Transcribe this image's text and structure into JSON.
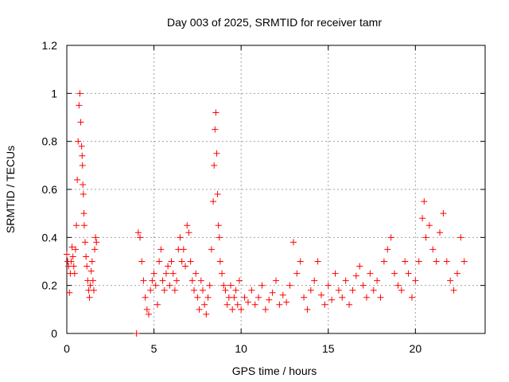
{
  "chart_data": {
    "type": "scatter",
    "title": "Day 003 of 2025, SRMTID for receiver tamr",
    "xlabel": "GPS time / hours",
    "ylabel": "SRMTID / TECUs",
    "xlim": [
      0,
      24
    ],
    "ylim": [
      0,
      1.2
    ],
    "grid": true,
    "marker": "+",
    "color": "#ff0000",
    "xticks": [
      0,
      5,
      10,
      15,
      20
    ],
    "xtick_labels": [
      "0",
      "5",
      "10",
      "15",
      "20"
    ],
    "yticks": [
      0,
      0.2,
      0.4,
      0.6,
      0.8,
      1.0,
      1.2
    ],
    "ytick_labels": [
      "0",
      "0.2",
      "0.4",
      "0.6",
      "0.8",
      "1",
      "1.2"
    ],
    "series": [
      {
        "name": "tamr",
        "x": [
          0.0,
          0.05,
          0.1,
          0.15,
          0.2,
          0.25,
          0.3,
          0.35,
          0.4,
          0.45,
          0.5,
          0.55,
          0.6,
          0.65,
          0.7,
          0.75,
          0.8,
          0.85,
          0.88,
          0.9,
          0.92,
          0.95,
          0.98,
          1.0,
          1.05,
          1.1,
          1.15,
          1.2,
          1.25,
          1.3,
          1.35,
          1.4,
          1.45,
          1.5,
          1.55,
          1.6,
          1.65,
          1.7,
          4.0,
          4.1,
          4.2,
          4.3,
          4.4,
          4.5,
          4.6,
          4.7,
          4.8,
          4.9,
          5.0,
          5.1,
          5.2,
          5.3,
          5.4,
          5.5,
          5.6,
          5.7,
          5.8,
          5.9,
          6.0,
          6.1,
          6.2,
          6.3,
          6.4,
          6.5,
          6.6,
          6.7,
          6.8,
          6.9,
          7.0,
          7.1,
          7.2,
          7.3,
          7.4,
          7.5,
          7.6,
          7.7,
          7.8,
          7.9,
          8.0,
          8.1,
          8.2,
          8.3,
          8.4,
          8.45,
          8.5,
          8.55,
          8.6,
          8.65,
          8.7,
          8.75,
          8.8,
          8.9,
          9.0,
          9.1,
          9.2,
          9.3,
          9.4,
          9.5,
          9.6,
          9.7,
          9.8,
          9.9,
          10.0,
          10.2,
          10.4,
          10.6,
          10.8,
          11.0,
          11.2,
          11.4,
          11.6,
          11.8,
          12.0,
          12.2,
          12.4,
          12.6,
          12.8,
          13.0,
          13.2,
          13.4,
          13.6,
          13.8,
          14.0,
          14.2,
          14.4,
          14.6,
          14.8,
          15.0,
          15.2,
          15.4,
          15.6,
          15.8,
          16.0,
          16.2,
          16.4,
          16.6,
          16.8,
          17.0,
          17.2,
          17.4,
          17.6,
          17.8,
          18.0,
          18.2,
          18.4,
          18.6,
          18.8,
          19.0,
          19.2,
          19.4,
          19.6,
          19.8,
          20.0,
          20.2,
          20.4,
          20.5,
          20.6,
          20.8,
          21.0,
          21.2,
          21.4,
          21.6,
          21.8,
          22.0,
          22.2,
          22.4,
          22.6,
          22.8
        ],
        "y": [
          0.33,
          0.3,
          0.28,
          0.17,
          0.25,
          0.3,
          0.36,
          0.32,
          0.28,
          0.25,
          0.35,
          0.45,
          0.64,
          0.8,
          0.95,
          1.0,
          0.88,
          0.78,
          0.74,
          0.7,
          0.62,
          0.58,
          0.5,
          0.45,
          0.38,
          0.32,
          0.28,
          0.22,
          0.18,
          0.15,
          0.2,
          0.26,
          0.3,
          0.22,
          0.18,
          0.35,
          0.4,
          0.38,
          0.0,
          0.42,
          0.4,
          0.3,
          0.22,
          0.15,
          0.1,
          0.08,
          0.18,
          0.22,
          0.25,
          0.2,
          0.12,
          0.3,
          0.35,
          0.22,
          0.18,
          0.25,
          0.28,
          0.2,
          0.3,
          0.25,
          0.18,
          0.22,
          0.35,
          0.4,
          0.3,
          0.35,
          0.28,
          0.45,
          0.42,
          0.3,
          0.22,
          0.18,
          0.25,
          0.15,
          0.1,
          0.22,
          0.18,
          0.12,
          0.08,
          0.15,
          0.2,
          0.35,
          0.55,
          0.7,
          0.85,
          0.92,
          0.75,
          0.58,
          0.45,
          0.4,
          0.3,
          0.25,
          0.2,
          0.18,
          0.12,
          0.15,
          0.2,
          0.1,
          0.15,
          0.18,
          0.12,
          0.22,
          0.1,
          0.15,
          0.13,
          0.18,
          0.12,
          0.15,
          0.2,
          0.1,
          0.14,
          0.17,
          0.22,
          0.12,
          0.16,
          0.13,
          0.2,
          0.38,
          0.25,
          0.3,
          0.15,
          0.1,
          0.18,
          0.22,
          0.3,
          0.16,
          0.12,
          0.2,
          0.14,
          0.25,
          0.18,
          0.15,
          0.22,
          0.12,
          0.18,
          0.24,
          0.28,
          0.2,
          0.15,
          0.25,
          0.18,
          0.22,
          0.15,
          0.3,
          0.35,
          0.4,
          0.25,
          0.2,
          0.18,
          0.3,
          0.25,
          0.15,
          0.22,
          0.3,
          0.48,
          0.55,
          0.4,
          0.45,
          0.35,
          0.3,
          0.42,
          0.5,
          0.3,
          0.22,
          0.18,
          0.25,
          0.4,
          0.3
        ]
      }
    ]
  }
}
